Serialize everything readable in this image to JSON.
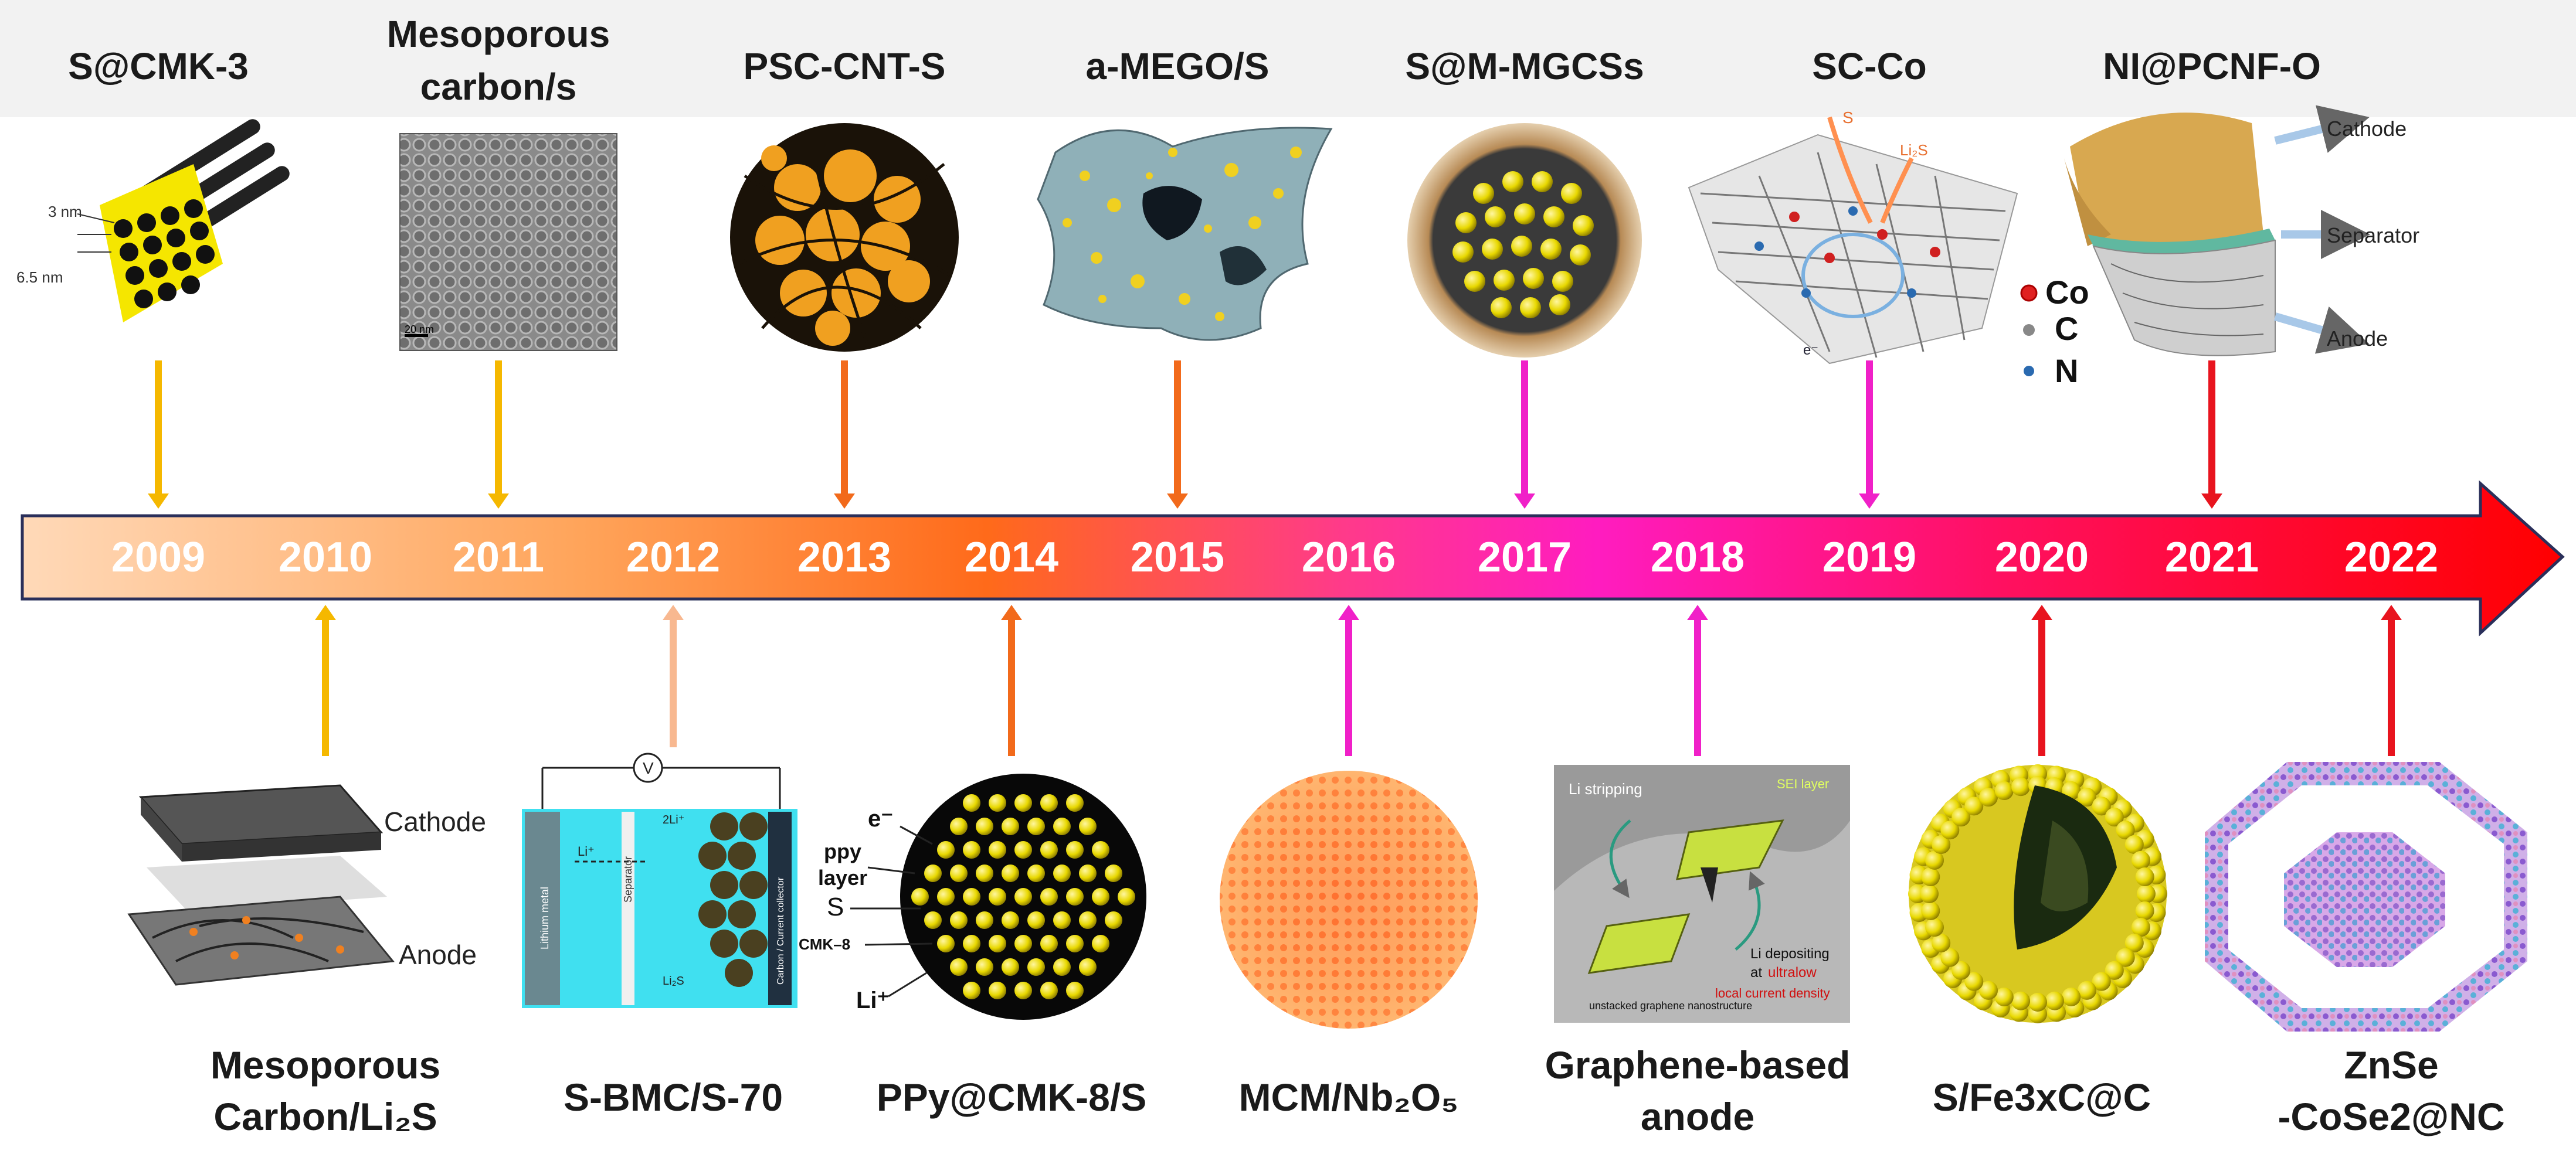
{
  "timeline": {
    "years": [
      "2009",
      "2010",
      "2011",
      "2012",
      "2013",
      "2014",
      "2015",
      "2016",
      "2017",
      "2018",
      "2019",
      "2020",
      "2021",
      "2022"
    ],
    "arrow_colors": [
      "#ffd5b0",
      "#ff9a3c",
      "#ff5a1f",
      "#ff2a8a",
      "#ff1aa8",
      "#ff1040",
      "#ff0000"
    ]
  },
  "top_items": [
    {
      "year": "2009",
      "label": "S@CMK-3",
      "color": "#f5b800"
    },
    {
      "year": "2011",
      "label_line1": "Mesoporous",
      "label_line2": "carbon/s",
      "color": "#f5b800"
    },
    {
      "year": "2013",
      "label": "PSC-CNT-S",
      "color": "#f26a1b"
    },
    {
      "year": "2015",
      "label": "a-MEGO/S",
      "color": "#f26a1b"
    },
    {
      "year": "2017",
      "label": "S@M-MGCSs",
      "color": "#f020c8"
    },
    {
      "year": "2019",
      "label": "SC-Co",
      "color": "#f020c8"
    },
    {
      "year": "2021",
      "label": "NI@PCNF-O",
      "color": "#e8141e"
    }
  ],
  "bottom_items": [
    {
      "year": "2010",
      "label_line1": "Mesoporous",
      "label_line2": "Carbon/Li₂S",
      "color": "#f5b800"
    },
    {
      "year": "2012",
      "label": "S-BMC/S-70",
      "color": "#f8b890"
    },
    {
      "year": "2014",
      "label": "PPy@CMK-8/S",
      "color": "#f26a1b"
    },
    {
      "year": "2016",
      "label": "MCM/Nb₂O₅",
      "color": "#f020c8"
    },
    {
      "year": "2018",
      "label_line1": "Graphene-based",
      "label_line2": "anode",
      "color": "#f020c8"
    },
    {
      "year": "2020",
      "label": "S/Fe3xC@C",
      "color": "#e8141e"
    },
    {
      "year": "2022",
      "label_line1": "ZnSe",
      "label_line2": "-CoSe2@NC",
      "color": "#e8141e"
    }
  ],
  "image_annotations": {
    "cmk3_dim1": "3 nm",
    "cmk3_dim2": "6.5 nm",
    "tem_scale": "20 nm",
    "sc_co_s": "S",
    "sc_co_li2s": "Li₂S",
    "sc_co_e": "e⁻",
    "nipcnf_cathode": "Cathode",
    "nipcnf_separator": "Separator",
    "nipcnf_anode": "Anode",
    "legend_co": "Co",
    "legend_c": "C",
    "legend_n": "N",
    "mc_cathode": "Cathode",
    "mc_anode": "Anode",
    "sbmc_v": "V",
    "sbmc_li": "Li⁺",
    "sbmc_s2": "2Li⁺",
    "sbmc_li2s": "Li₂S",
    "sbmc_lithium_metal": "Lithium metal",
    "sbmc_separator": "Separator",
    "sbmc_current_collector": "Carbon / Current collector",
    "ppy_e": "e⁻",
    "ppy_layer1": "ppy",
    "ppy_layer2": "layer",
    "ppy_s": "S",
    "ppy_cmk8": "CMK–8",
    "ppy_li": "Li⁺",
    "gr_li_stripping": "Li stripping",
    "gr_sei": "SEI layer",
    "gr_li_depositing": "Li depositing",
    "gr_at_ultralow_1": "at",
    "gr_at_ultralow_2": "ultralow",
    "gr_local_current": "local current density",
    "gr_unstacked": "unstacked graphene nanostructure"
  }
}
